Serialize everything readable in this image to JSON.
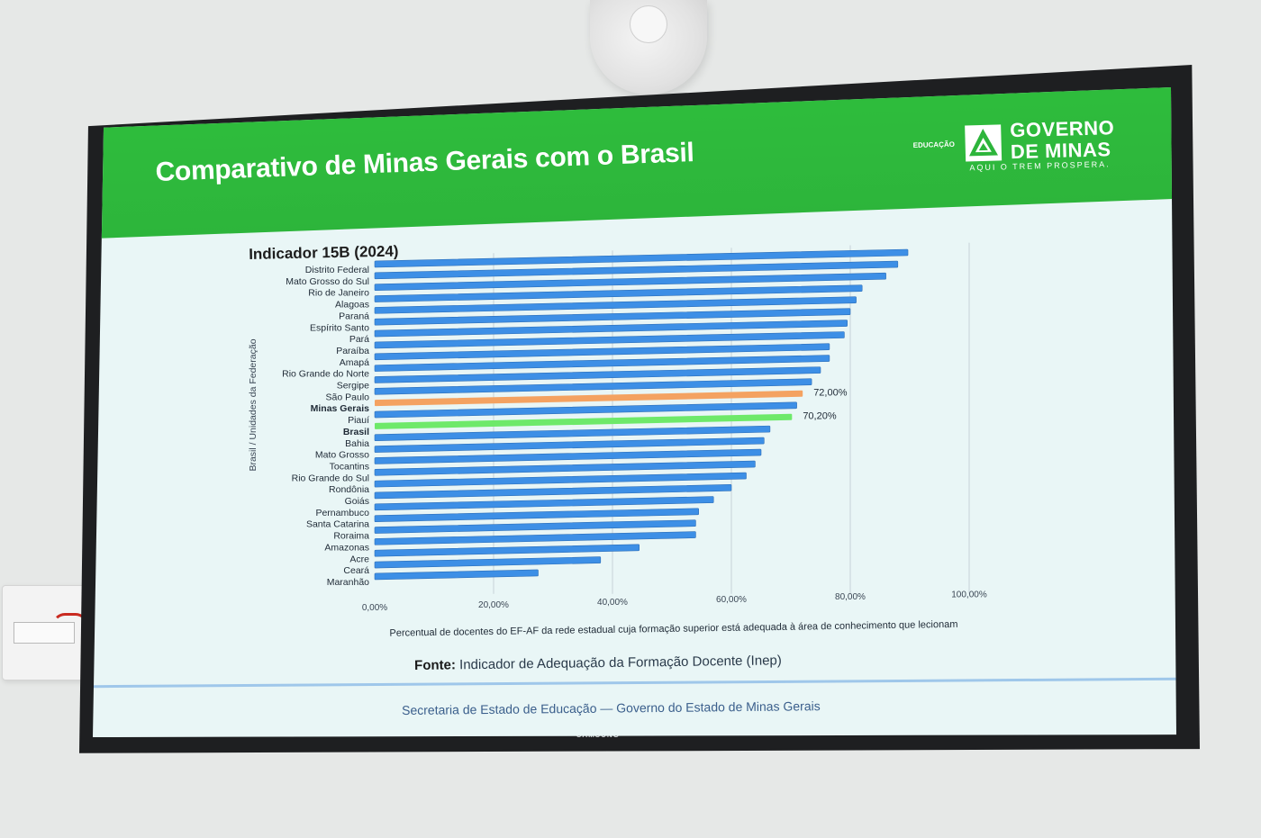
{
  "slide": {
    "title": "Comparativo de Minas Gerais com o Brasil",
    "logo": {
      "section": "EDUCAÇÃO",
      "line1": "GOVERNO",
      "line2": "DE MINAS",
      "tagline": "AQUI O TREM PROSPERA."
    },
    "source_prefix": "Fonte:",
    "source_text": " Indicador de Adequação da Formação Docente (Inep)",
    "footer": "Secretaria de Estado de Educação — Governo do Estado de Minas Gerais",
    "tv_brand": "SAMSUNG"
  },
  "chart_data": {
    "type": "bar",
    "orientation": "horizontal",
    "title": "Indicador 15B (2024)",
    "xlabel": "Percentual de docentes do EF-AF da rede estadual cuja formação superior está adequada à área de conhecimento que lecionam",
    "ylabel": "Brasil / Unidades da Federação",
    "xlim": [
      0,
      100
    ],
    "xticks": [
      "0,00%",
      "20,00%",
      "40,00%",
      "60,00%",
      "80,00%",
      "100,00%"
    ],
    "grid": true,
    "categories": [
      "Distrito Federal",
      "Mato Grosso do Sul",
      "Rio de Janeiro",
      "Alagoas",
      "Paraná",
      "Espírito Santo",
      "Pará",
      "Paraíba",
      "Amapá",
      "Rio Grande do Norte",
      "Sergipe",
      "São Paulo",
      "Minas Gerais",
      "Piauí",
      "Brasil",
      "Bahia",
      "Mato Grosso",
      "Tocantins",
      "Rio Grande do Sul",
      "Rondônia",
      "Goiás",
      "Pernambuco",
      "Santa Catarina",
      "Roraima",
      "Amazonas",
      "Acre",
      "Ceará",
      "Maranhão"
    ],
    "values": [
      89.7,
      88.0,
      86.0,
      82.0,
      81.0,
      80.0,
      79.5,
      79.0,
      76.5,
      76.5,
      75.0,
      73.5,
      72.0,
      71.0,
      70.2,
      66.5,
      65.5,
      65.0,
      64.0,
      62.5,
      60.0,
      57.0,
      54.5,
      54.0,
      54.0,
      44.5,
      38.0,
      27.5
    ],
    "highlight": {
      "Minas Gerais": {
        "color": "#f4a261",
        "label": "72,00%"
      },
      "Brasil": {
        "color": "#6ee96a",
        "label": "70,20%"
      }
    },
    "bar_color": "#3d8fe6",
    "bold_categories": [
      "Minas Gerais",
      "Brasil"
    ]
  }
}
